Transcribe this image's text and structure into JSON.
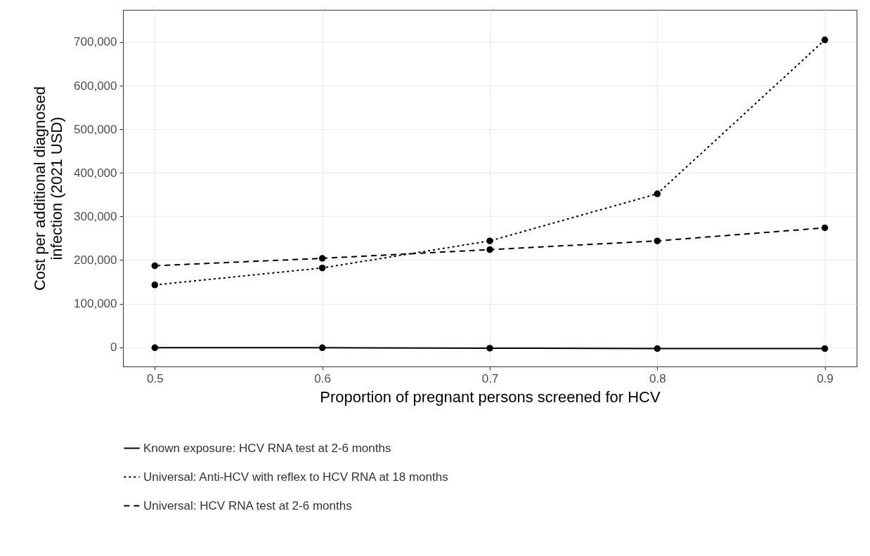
{
  "chart_data": {
    "type": "line",
    "xlabel": "Proportion of pregnant persons screened for HCV",
    "ylabel": "Cost per additional diagnosed\ninfection (2021 USD)",
    "x": [
      0.5,
      0.6,
      0.7,
      0.8,
      0.9
    ],
    "series": [
      {
        "name": "Known exposure: HCV RNA test at 2-6 months",
        "color": "#000000",
        "line_style": "solid",
        "values": [
          -1000,
          -1000,
          -2000,
          -3000,
          -3000
        ]
      },
      {
        "name": "Universal: Anti-HCV with reflex to HCV RNA at 18 months",
        "color": "#000000",
        "line_style": "dotted",
        "values": [
          143000,
          182000,
          244000,
          352000,
          705000
        ]
      },
      {
        "name": "Universal: HCV RNA test at 2-6 months",
        "color": "#000000",
        "line_style": "dashed",
        "values": [
          187000,
          204000,
          224000,
          244000,
          274000
        ]
      }
    ],
    "xlim": [
      0.481,
      0.919
    ],
    "xticks": [
      0.5,
      0.6,
      0.7,
      0.8,
      0.9
    ],
    "ylim": [
      -44000,
      774000
    ],
    "yticks": [
      0,
      {
        "value": 100000,
        "label": "100,000"
      },
      {
        "value": 200000,
        "label": "200,000"
      },
      {
        "value": 300000,
        "label": "300,000"
      },
      {
        "value": 400000,
        "label": "400,000"
      },
      {
        "value": 500000,
        "label": "500,000"
      },
      {
        "value": 600000,
        "label": "600,000"
      },
      {
        "value": 700000,
        "label": "700,000"
      }
    ],
    "grid": true,
    "legend": "bottom",
    "marker": "circle"
  }
}
